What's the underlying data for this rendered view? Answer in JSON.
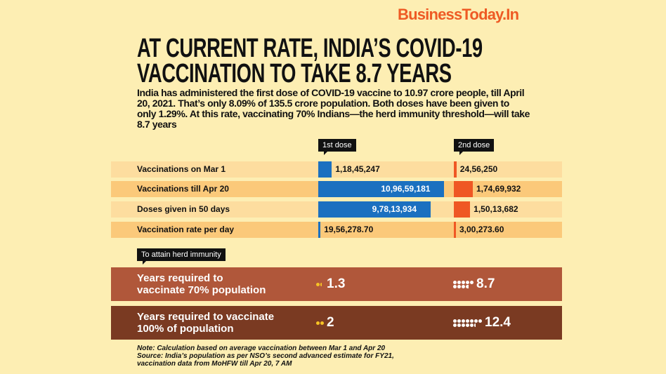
{
  "logo": "BusinessToday.In",
  "title_lines": [
    "AT CURRENT RATE, INDIA’S COVID-19",
    "VACCINATION TO TAKE 8.7 YEARS"
  ],
  "intro": "India has administered the first dose of COVID-19 vaccine to 10.97 crore people, till April 20, 2021. That’s only 8.09% of 135.5 crore population. Both doses have been given to only 1.29%. At this rate, vaccinating 70% Indians—the herd immunity threshold—will take 8.7 years",
  "colors": {
    "background": "#fdeeb3",
    "first_dose": "#1b70c0",
    "second_dose": "#ef5724",
    "herd_70": "#b0573a",
    "herd_100": "#7a3a22",
    "brand": "#ee5a24"
  },
  "chart_data": {
    "type": "bar",
    "categories": [
      "Vaccinations on Mar 1",
      "Vaccinations till Apr 20",
      "Doses given in 50 days",
      "Vaccination rate per day"
    ],
    "series": [
      {
        "name": "1st dose",
        "values": [
          11845247,
          109659181,
          97813934,
          1956278.7
        ],
        "labels": [
          "1,18,45,247",
          "10,96,59,181",
          "9,78,13,934",
          "19,56,278.70"
        ]
      },
      {
        "name": "2nd dose",
        "values": [
          2456250,
          17469932,
          15013682,
          300273.6
        ],
        "labels": [
          "24,56,250",
          "1,74,69,932",
          "1,50,13,682",
          "3,00,273.60"
        ]
      }
    ]
  },
  "herd": {
    "tag": "To attain herd immunity",
    "rows": [
      {
        "label_lines": [
          "Years required to",
          "vaccinate 70% population"
        ],
        "first_dose": 1.3,
        "first_label": "1.3",
        "second_dose": 8.7,
        "second_label": "8.7"
      },
      {
        "label_lines": [
          "Years required to vaccinate",
          "100% of population"
        ],
        "first_dose": 2,
        "first_label": "2",
        "second_dose": 12.4,
        "second_label": "12.4"
      }
    ]
  },
  "notes": [
    "Note: Calculation based on average vaccination between Mar 1 and Apr 20",
    "Source: India’s population as per NSO’s second advanced estimate for FY21,",
    "vaccination data from MoHFW till Apr 20, 7 AM"
  ]
}
